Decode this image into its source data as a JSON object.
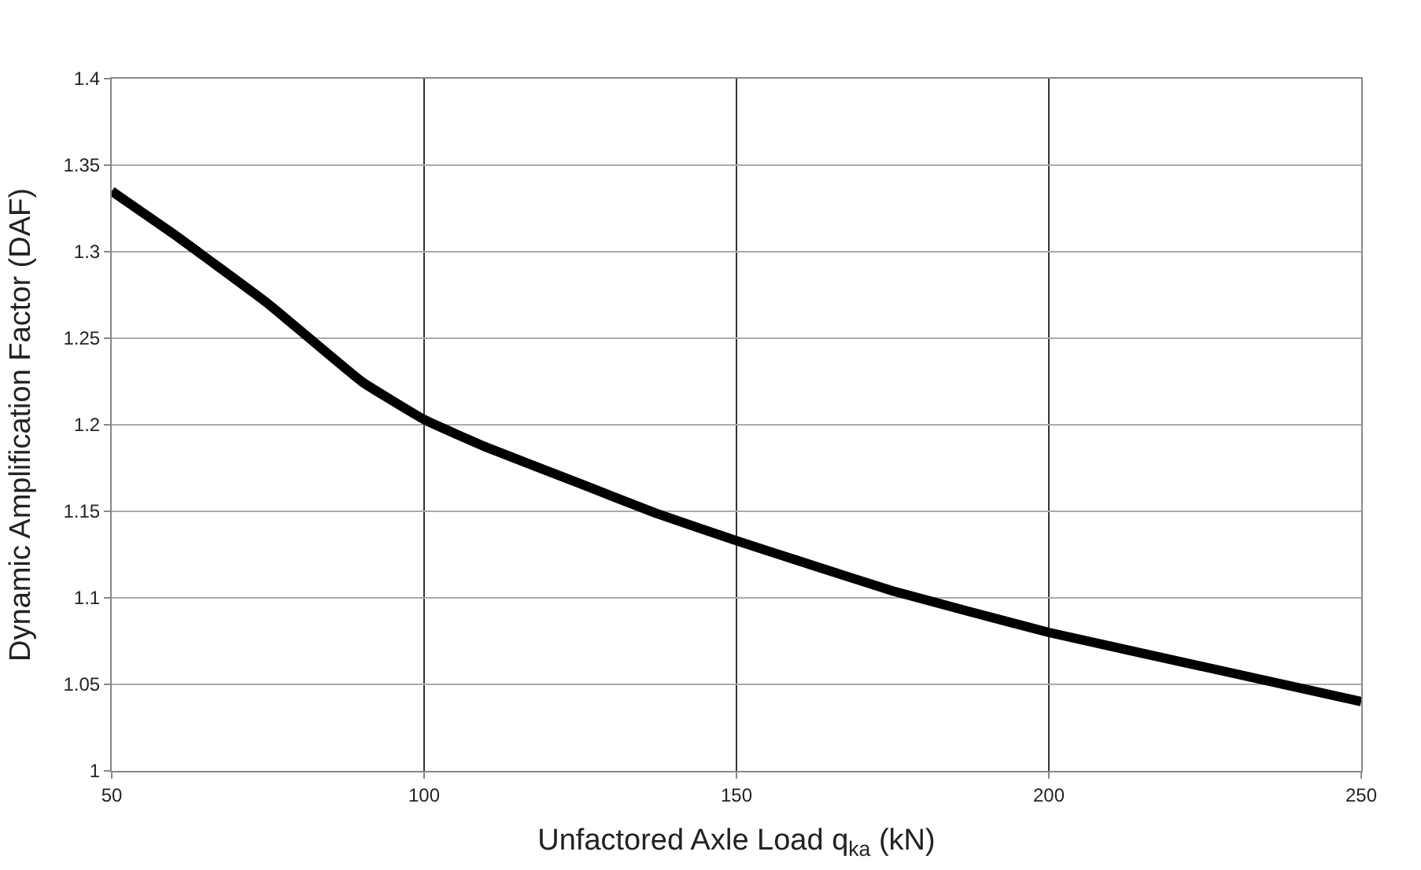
{
  "chart_data": {
    "type": "line",
    "xlabel": "Unfactored Axle Load q$_{ka}$ (kN)",
    "ylabel": "Dynamic Amplification Factor (DAF)",
    "x": [
      50,
      60,
      75,
      90,
      100,
      110,
      125,
      137,
      150,
      162,
      175,
      200,
      225,
      250
    ],
    "series": [
      {
        "color": "#000000",
        "values": [
          1.335,
          1.31,
          1.27,
          1.225,
          1.203,
          1.187,
          1.166,
          1.149,
          1.133,
          1.119,
          1.104,
          1.08,
          1.06,
          1.04
        ]
      }
    ],
    "xlim": [
      50,
      250
    ],
    "xticks": [
      50,
      100,
      150,
      200,
      250
    ],
    "ylim": [
      1,
      1.4
    ],
    "yticks": [
      1,
      {
        "value": 1.05,
        "label": "1.05"
      },
      {
        "value": 1.1,
        "label": "1.1"
      },
      {
        "value": 1.15,
        "label": "1.15"
      },
      {
        "value": 1.2,
        "label": "1.2"
      },
      {
        "value": 1.25,
        "label": "1.25"
      },
      {
        "value": 1.3,
        "label": "1.3"
      },
      {
        "value": 1.35,
        "label": "1.35"
      },
      {
        "value": 1.4,
        "label": "1.4"
      }
    ],
    "grid": true,
    "marker": "none",
    "line_style": "solid"
  }
}
